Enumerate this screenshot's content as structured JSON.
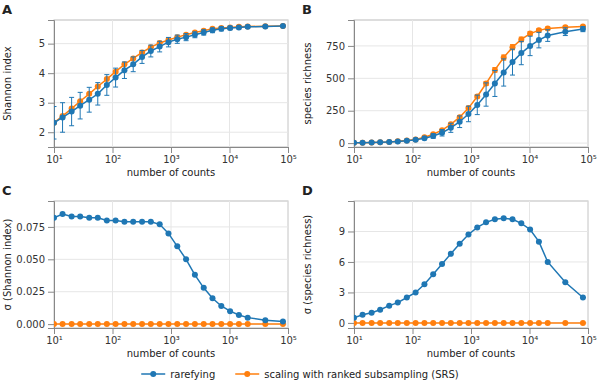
{
  "chart_data": [
    {
      "type": "line",
      "title": "A",
      "xlabel": "number of counts",
      "ylabel": "Shannon index",
      "log": "x",
      "grid": true,
      "marker": "circle",
      "legend": "bottom",
      "xlim": [
        10,
        100000
      ],
      "xticks": [
        {
          "value": 10,
          "label": "10¹"
        },
        {
          "value": 100,
          "label": "10²"
        },
        {
          "value": 1000,
          "label": "10³"
        },
        {
          "value": 10000,
          "label": "10⁴"
        },
        {
          "value": 100000,
          "label": "10⁵"
        }
      ],
      "ylim": [
        1.5,
        5.8
      ],
      "yticks": [
        2,
        3,
        4,
        5
      ],
      "x": [
        10,
        14,
        20,
        28,
        40,
        56,
        80,
        113,
        160,
        226,
        320,
        452,
        640,
        905,
        1280,
        1811,
        2560,
        3623,
        5120,
        7244,
        10240,
        14480,
        20480,
        40960,
        81920
      ],
      "series": [
        {
          "name": "rarefying",
          "values": [
            2.32,
            2.5,
            2.7,
            2.9,
            3.1,
            3.3,
            3.6,
            3.85,
            4.1,
            4.3,
            4.55,
            4.75,
            4.9,
            5.05,
            5.15,
            5.22,
            5.3,
            5.38,
            5.45,
            5.5,
            5.53,
            5.55,
            5.57,
            5.58,
            5.6
          ],
          "errors": [
            0.55,
            0.5,
            0.48,
            0.45,
            0.42,
            0.38,
            0.35,
            0.32,
            0.28,
            0.25,
            0.22,
            0.2,
            0.18,
            0.16,
            0.14,
            0.12,
            0.1,
            0.09,
            0.08,
            0.07,
            0.06,
            0.05,
            0.04,
            0.03,
            0.02
          ]
        },
        {
          "name": "scaling with ranked subsampling (SRS)",
          "values": [
            2.32,
            2.55,
            2.8,
            3.05,
            3.3,
            3.55,
            3.8,
            4.05,
            4.3,
            4.5,
            4.7,
            4.88,
            5.02,
            5.12,
            5.22,
            5.3,
            5.38,
            5.44,
            5.5,
            5.53,
            5.55,
            5.57,
            5.58,
            5.59,
            5.6
          ],
          "errors": [
            0.02,
            0.02,
            0.02,
            0.02,
            0.02,
            0.02,
            0.02,
            0.02,
            0.02,
            0.02,
            0.02,
            0.02,
            0.02,
            0.02,
            0.02,
            0.02,
            0.02,
            0.02,
            0.02,
            0.02,
            0.02,
            0.02,
            0.02,
            0.02,
            0.02
          ]
        }
      ]
    },
    {
      "type": "line",
      "title": "B",
      "xlabel": "number of counts",
      "ylabel": "species richness",
      "log": "x",
      "grid": true,
      "marker": "circle",
      "xlim": [
        10,
        100000
      ],
      "xticks": [
        {
          "value": 10,
          "label": "10¹"
        },
        {
          "value": 100,
          "label": "10²"
        },
        {
          "value": 1000,
          "label": "10³"
        },
        {
          "value": 10000,
          "label": "10⁴"
        },
        {
          "value": 100000,
          "label": "10⁵"
        }
      ],
      "ylim": [
        -30,
        950
      ],
      "yticks": [
        0,
        250,
        500,
        750
      ],
      "x": [
        10,
        14,
        20,
        28,
        40,
        56,
        80,
        113,
        160,
        226,
        320,
        452,
        640,
        905,
        1280,
        1811,
        2560,
        3623,
        5120,
        7244,
        10240,
        14480,
        20480,
        40960,
        81920
      ],
      "series": [
        {
          "values": [
            2,
            3,
            4,
            6,
            9,
            13,
            18,
            25,
            38,
            55,
            80,
            118,
            165,
            225,
            295,
            375,
            460,
            545,
            625,
            695,
            750,
            795,
            830,
            860,
            880
          ],
          "errors": [
            1,
            1,
            1.5,
            2,
            3,
            4,
            5,
            8,
            12,
            18,
            25,
            35,
            45,
            60,
            75,
            90,
            100,
            105,
            100,
            90,
            75,
            60,
            45,
            30,
            20
          ]
        },
        {
          "values": [
            2,
            3,
            4,
            6,
            9,
            14,
            20,
            28,
            45,
            68,
            100,
            145,
            200,
            270,
            360,
            460,
            565,
            660,
            740,
            800,
            845,
            870,
            885,
            895,
            900
          ],
          "errors": [
            0.5,
            0.5,
            0.5,
            0.5,
            1,
            1,
            1,
            2,
            2,
            3,
            4,
            5,
            7,
            9,
            12,
            15,
            18,
            20,
            20,
            18,
            15,
            12,
            10,
            8,
            6
          ]
        }
      ]
    },
    {
      "type": "line",
      "title": "C",
      "xlabel": "number of counts",
      "ylabel": "σ (Shannon index)",
      "log": "x",
      "grid": true,
      "marker": "circle",
      "xlim": [
        10,
        100000
      ],
      "xticks": [
        {
          "value": 10,
          "label": "10¹"
        },
        {
          "value": 100,
          "label": "10²"
        },
        {
          "value": 1000,
          "label": "10³"
        },
        {
          "value": 10000,
          "label": "10⁴"
        },
        {
          "value": 100000,
          "label": "10⁵"
        }
      ],
      "ylim": [
        -0.003,
        0.095
      ],
      "yticks": [
        {
          "value": 0.0,
          "label": "0.000"
        },
        {
          "value": 0.025,
          "label": "0.025"
        },
        {
          "value": 0.05,
          "label": "0.050"
        },
        {
          "value": 0.075,
          "label": "0.075"
        }
      ],
      "x": [
        10,
        14,
        20,
        28,
        40,
        56,
        80,
        113,
        160,
        226,
        320,
        452,
        640,
        905,
        1280,
        1811,
        2560,
        3623,
        5120,
        7244,
        10240,
        14480,
        20480,
        40960,
        81920
      ],
      "series": [
        {
          "values": [
            0.082,
            0.085,
            0.083,
            0.083,
            0.082,
            0.082,
            0.08,
            0.08,
            0.079,
            0.079,
            0.079,
            0.079,
            0.077,
            0.07,
            0.06,
            0.05,
            0.038,
            0.028,
            0.02,
            0.014,
            0.01,
            0.007,
            0.005,
            0.003,
            0.002
          ],
          "errors": [
            0.0,
            0.0,
            0.0,
            0.0,
            0.0,
            0.0,
            0.0,
            0.0,
            0.0,
            0.0,
            0.0,
            0.0,
            0.0,
            0.0,
            0.0,
            0.0,
            0.0,
            0.0,
            0.0,
            0.0,
            0.0,
            0.0,
            0.0,
            0.0,
            0.0
          ]
        },
        {
          "values": [
            0.0001,
            0.0001,
            0.0001,
            0.0001,
            0.0001,
            0.0001,
            0.0001,
            0.0001,
            0.0001,
            0.0001,
            0.0001,
            0.0001,
            0.0001,
            0.0001,
            0.0001,
            0.0001,
            0.0001,
            0.0001,
            0.0001,
            0.0001,
            0.0001,
            0.0001,
            0.0001,
            0.0001,
            0.0001
          ],
          "errors": [
            0.0,
            0.0,
            0.0,
            0.0,
            0.0,
            0.0,
            0.0,
            0.0,
            0.0,
            0.0,
            0.0,
            0.0,
            0.0,
            0.0,
            0.0,
            0.0,
            0.0,
            0.0,
            0.0,
            0.0,
            0.0,
            0.0,
            0.0,
            0.0,
            0.0
          ]
        }
      ]
    },
    {
      "type": "line",
      "title": "D",
      "xlabel": "number of counts",
      "ylabel": "σ (species richness)",
      "log": "x",
      "grid": true,
      "marker": "circle",
      "xlim": [
        10,
        100000
      ],
      "xticks": [
        {
          "value": 10,
          "label": "10¹"
        },
        {
          "value": 100,
          "label": "10²"
        },
        {
          "value": 1000,
          "label": "10³"
        },
        {
          "value": 10000,
          "label": "10⁴"
        },
        {
          "value": 100000,
          "label": "10⁵"
        }
      ],
      "ylim": [
        -0.5,
        12
      ],
      "yticks": [
        0,
        3,
        6,
        9
      ],
      "x": [
        10,
        14,
        20,
        28,
        40,
        56,
        80,
        113,
        160,
        226,
        320,
        452,
        640,
        905,
        1280,
        1811,
        2560,
        3623,
        5120,
        7244,
        10240,
        14480,
        20480,
        40960,
        81920
      ],
      "series": [
        {
          "values": [
            0.5,
            0.8,
            1.0,
            1.3,
            1.7,
            2.0,
            2.5,
            3.0,
            3.8,
            4.8,
            5.8,
            6.8,
            7.8,
            8.7,
            9.4,
            9.9,
            10.2,
            10.3,
            10.2,
            9.8,
            9.2,
            8.0,
            6.0,
            4.0,
            2.5
          ],
          "errors": [
            0.0,
            0.0,
            0.0,
            0.0,
            0.0,
            0.0,
            0.0,
            0.0,
            0.0,
            0.0,
            0.0,
            0.0,
            0.0,
            0.0,
            0.0,
            0.0,
            0.0,
            0.0,
            0.0,
            0.0,
            0.0,
            0.0,
            0.0,
            0.0,
            0.0
          ]
        },
        {
          "values": [
            0.001,
            0.001,
            0.001,
            0.001,
            0.001,
            0.001,
            0.001,
            0.001,
            0.001,
            0.001,
            0.001,
            0.001,
            0.001,
            0.001,
            0.001,
            0.001,
            0.001,
            0.001,
            0.001,
            0.001,
            0.001,
            0.001,
            0.001,
            0.001,
            0.001
          ],
          "errors": [
            0.0,
            0.0,
            0.0,
            0.0,
            0.0,
            0.0,
            0.0,
            0.0,
            0.0,
            0.0,
            0.0,
            0.0,
            0.0,
            0.0,
            0.0,
            0.0,
            0.0,
            0.0,
            0.0,
            0.0,
            0.0,
            0.0,
            0.0,
            0.0,
            0.0
          ]
        }
      ]
    }
  ]
}
